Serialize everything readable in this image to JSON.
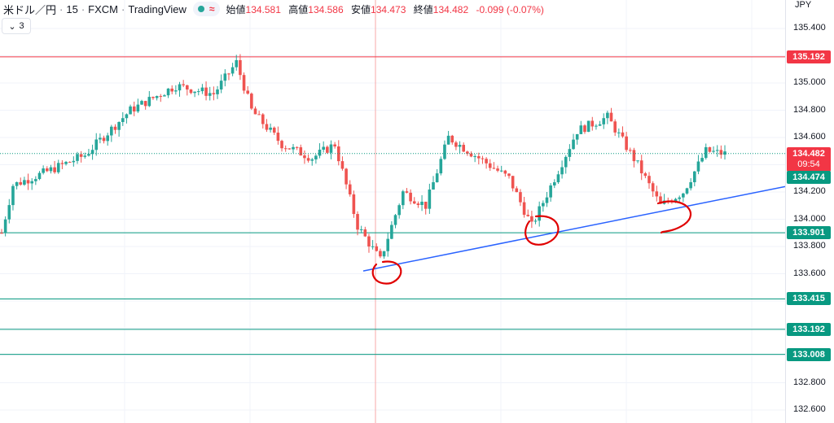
{
  "header": {
    "symbol": "米ドル／円",
    "interval": "15",
    "broker": "FXCM",
    "platform": "TradingView",
    "approx_symbol": "≈",
    "open_label": "始値",
    "open": "134.581",
    "high_label": "高値",
    "high": "134.586",
    "low_label": "安値",
    "low": "134.473",
    "close_label": "終値",
    "close": "134.482",
    "change": "-0.099 (-0.07%)"
  },
  "collapse_count": "3",
  "currency": "JPY",
  "colors": {
    "up": "#26a69a",
    "down": "#ef5350",
    "trend": "#2962ff",
    "annotation": "#e00000",
    "hline_red": "#f23645",
    "hline_green": "#089981"
  },
  "chart_data": {
    "type": "candlestick",
    "ylim": [
      132.5,
      135.5
    ],
    "y_ticks": [
      "135.400",
      "135.200",
      "135.000",
      "134.800",
      "134.600",
      "134.400",
      "134.200",
      "134.000",
      "133.800",
      "133.600",
      "133.400",
      "133.200",
      "133.000",
      "132.800",
      "132.600"
    ],
    "current_price": "134.482",
    "countdown": "09:54",
    "bid_price": "134.474",
    "hlines": [
      {
        "price": 135.192,
        "label": "135.192",
        "color": "red"
      },
      {
        "price": 133.901,
        "label": "133.901",
        "color": "green"
      },
      {
        "price": 133.415,
        "label": "133.415",
        "color": "green"
      },
      {
        "price": 133.192,
        "label": "133.192",
        "color": "green"
      },
      {
        "price": 133.008,
        "label": "133.008",
        "color": "green"
      }
    ],
    "trendline": {
      "start": {
        "bar": 0.5,
        "price": 133.62
      },
      "end": {
        "bar": 1.0,
        "price": 134.24
      }
    },
    "anchors": [
      {
        "bar": 0,
        "price": 133.9
      },
      {
        "bar": 3,
        "price": 134.25
      },
      {
        "bar": 12,
        "price": 134.35
      },
      {
        "bar": 22,
        "price": 134.47
      },
      {
        "bar": 34,
        "price": 134.8
      },
      {
        "bar": 46,
        "price": 134.98
      },
      {
        "bar": 56,
        "price": 134.92
      },
      {
        "bar": 62,
        "price": 135.15
      },
      {
        "bar": 66,
        "price": 134.8
      },
      {
        "bar": 74,
        "price": 134.55
      },
      {
        "bar": 82,
        "price": 134.45
      },
      {
        "bar": 88,
        "price": 134.55
      },
      {
        "bar": 94,
        "price": 133.95
      },
      {
        "bar": 100,
        "price": 133.7
      },
      {
        "bar": 106,
        "price": 134.2
      },
      {
        "bar": 112,
        "price": 134.1
      },
      {
        "bar": 118,
        "price": 134.6
      },
      {
        "bar": 126,
        "price": 134.45
      },
      {
        "bar": 134,
        "price": 134.3
      },
      {
        "bar": 140,
        "price": 133.95
      },
      {
        "bar": 146,
        "price": 134.3
      },
      {
        "bar": 152,
        "price": 134.65
      },
      {
        "bar": 160,
        "price": 134.75
      },
      {
        "bar": 168,
        "price": 134.4
      },
      {
        "bar": 174,
        "price": 134.1
      },
      {
        "bar": 180,
        "price": 134.2
      },
      {
        "bar": 186,
        "price": 134.5
      },
      {
        "bar": 191,
        "price": 134.48
      }
    ],
    "annotations": [
      "circle at first swing low",
      "circle at second swing low",
      "circle at third swing low"
    ]
  }
}
